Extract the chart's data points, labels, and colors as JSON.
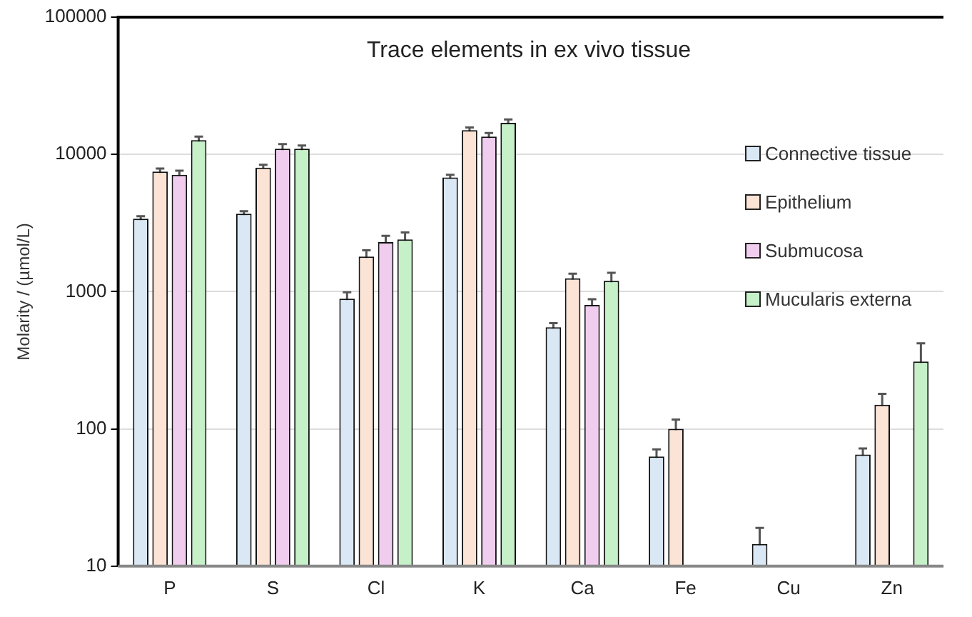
{
  "chart_data": {
    "type": "bar",
    "title": "Trace elements  in ex vivo tissue",
    "ylabel": "Molarity / (µmol/L)",
    "categories": [
      "P",
      "S",
      "Cl",
      "K",
      "Ca",
      "Fe",
      "Cu",
      "Zn"
    ],
    "series": [
      {
        "name": "Connective tissue",
        "color": "#dae8f5",
        "values": [
          3400,
          3700,
          890,
          6800,
          550,
          63,
          14.5,
          65
        ],
        "errors": [
          150,
          150,
          100,
          300,
          40,
          8,
          4.5,
          7
        ]
      },
      {
        "name": "Epithelium",
        "color": "#fbe3d5",
        "values": [
          7500,
          8000,
          1800,
          15000,
          1250,
          100,
          null,
          150
        ],
        "errors": [
          400,
          400,
          200,
          700,
          100,
          17,
          null,
          30
        ]
      },
      {
        "name": "Submucosa",
        "color": "#f0cdef",
        "values": [
          7100,
          11000,
          2300,
          13500,
          800,
          null,
          null,
          null
        ],
        "errors": [
          500,
          900,
          250,
          800,
          80,
          null,
          null,
          null
        ]
      },
      {
        "name": "Mucularis externa",
        "color": "#c5f0c8",
        "values": [
          12700,
          11000,
          2400,
          17000,
          1200,
          null,
          null,
          310
        ],
        "errors": [
          800,
          600,
          300,
          1000,
          170,
          null,
          null,
          110
        ]
      }
    ],
    "ylim": [
      10,
      100000
    ],
    "yticks": [
      10,
      100,
      1000,
      10000,
      100000
    ],
    "log": "y",
    "grid": "y",
    "legend": "right"
  }
}
